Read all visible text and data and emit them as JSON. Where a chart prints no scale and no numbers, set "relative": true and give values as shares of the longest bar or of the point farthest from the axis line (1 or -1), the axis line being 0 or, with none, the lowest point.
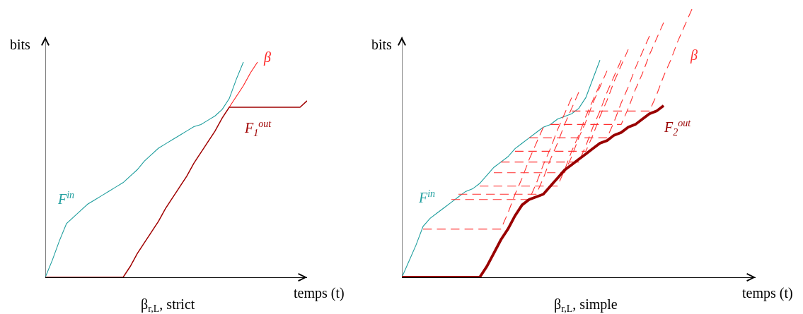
{
  "chart_data": [
    {
      "type": "line",
      "title": "β$_{r,L}$, strict",
      "xlabel": "temps (t)",
      "ylabel": "bits",
      "relative": true,
      "line_style": "solid",
      "categories": [
        null,
        null,
        null,
        null,
        null,
        null,
        null,
        null,
        null,
        null,
        null,
        null,
        null,
        null,
        null,
        null,
        null,
        null,
        null,
        null,
        null,
        null,
        null,
        null,
        null,
        null,
        null,
        null,
        null,
        null,
        null,
        null,
        null,
        null,
        null,
        null,
        null,
        null
      ],
      "series": [
        {
          "name": "F$^{in}$",
          "color": "#1f9e9e",
          "values": [
            0,
            0.08,
            0.17,
            0.25,
            0.28,
            0.31,
            0.34,
            0.36,
            0.38,
            0.4,
            0.42,
            0.44,
            0.47,
            0.5,
            0.54,
            0.57,
            0.6,
            0.62,
            0.64,
            0.66,
            0.68,
            0.7,
            0.71,
            0.73,
            0.75,
            0.78,
            0.83,
            0.92,
            1.0,
            null,
            null,
            null,
            null,
            null,
            null,
            null,
            null,
            null
          ]
        },
        {
          "name": "β",
          "color": "#ff2020",
          "values": [
            null,
            null,
            null,
            null,
            null,
            null,
            null,
            null,
            null,
            null,
            null,
            null,
            null,
            null,
            null,
            null,
            null,
            null,
            null,
            null,
            null,
            null,
            null,
            null,
            null,
            null,
            0.79,
            0.84,
            0.89,
            0.95,
            1.0,
            null,
            null,
            null,
            null,
            null,
            null,
            null
          ]
        },
        {
          "name": "F$_{1}$$^{out}$",
          "color": "#a00000",
          "values": [
            0,
            0,
            0,
            0,
            0,
            0,
            0,
            0,
            0,
            0,
            0,
            0,
            0.05,
            0.11,
            0.16,
            0.21,
            0.26,
            0.32,
            0.37,
            0.42,
            0.47,
            0.53,
            0.58,
            0.63,
            0.68,
            0.74,
            0.79,
            0.79,
            0.79,
            0.79,
            0.79,
            0.79,
            0.79,
            0.79,
            0.79,
            0.79,
            0.79,
            0.82
          ]
        }
      ]
    },
    {
      "type": "line",
      "title": "β$_{r,L}$, simple",
      "xlabel": "temps (t)",
      "ylabel": "bits",
      "relative": true,
      "line_style": "solid",
      "categories": [
        null,
        null,
        null,
        null,
        null,
        null,
        null,
        null,
        null,
        null,
        null,
        null,
        null,
        null,
        null,
        null,
        null,
        null,
        null,
        null,
        null,
        null,
        null,
        null,
        null,
        null,
        null,
        null,
        null,
        null,
        null,
        null,
        null,
        null,
        null,
        null,
        null,
        null,
        null,
        null,
        null,
        null,
        null,
        null,
        null,
        null,
        null,
        null,
        null,
        null,
        null
      ],
      "series": [
        {
          "name": "F$^{in}$",
          "color": "#1f9e9e",
          "values": [
            0,
            0.06,
            0.12,
            0.19,
            0.22,
            0.24,
            0.26,
            0.28,
            0.3,
            0.32,
            0.33,
            0.35,
            0.38,
            0.41,
            0.43,
            0.45,
            0.48,
            0.5,
            0.52,
            0.54,
            0.56,
            0.57,
            0.59,
            0.6,
            0.61,
            0.63,
            0.67,
            0.74,
            0.81,
            null,
            null,
            null,
            null,
            null,
            null,
            null,
            null,
            null,
            null,
            null,
            null,
            null,
            null,
            null,
            null,
            null,
            null,
            null,
            null,
            null,
            null
          ]
        },
        {
          "color": "#ff3030",
          "line_style": "dashed",
          "values": [
            null,
            null,
            null,
            0.18,
            0.18,
            0.18,
            0.18,
            0.18,
            0.18,
            0.18,
            0.18,
            0.18,
            0.18,
            0.18,
            0.18,
            0.24,
            0.31,
            0.37,
            0.44,
            0.5,
            0.56,
            null,
            null,
            null,
            null,
            null,
            null,
            null,
            null,
            null,
            null,
            null,
            null,
            null,
            null,
            null,
            null,
            null,
            null,
            null,
            null,
            null,
            null,
            null,
            null,
            null,
            null,
            null,
            null,
            null,
            null
          ]
        },
        {
          "color": "#ff3030",
          "line_style": "dashed",
          "values": [
            null,
            null,
            null,
            null,
            null,
            null,
            null,
            0.29,
            0.29,
            0.29,
            0.29,
            0.29,
            0.29,
            0.29,
            0.29,
            0.29,
            0.29,
            0.29,
            0.29,
            0.35,
            0.42,
            0.48,
            0.55,
            0.61,
            0.67,
            null,
            null,
            null,
            null,
            null,
            null,
            null,
            null,
            null,
            null,
            null,
            null,
            null,
            null,
            null,
            null,
            null,
            null,
            null,
            null,
            null,
            null,
            null,
            null,
            null,
            null
          ]
        },
        {
          "color": "#ff3030",
          "line_style": "dashed",
          "values": [
            null,
            null,
            null,
            null,
            null,
            null,
            null,
            null,
            0.31,
            0.31,
            0.31,
            0.31,
            0.31,
            0.31,
            0.31,
            0.31,
            0.31,
            0.31,
            0.31,
            0.31,
            0.37,
            0.44,
            0.5,
            0.57,
            0.63,
            0.69,
            null,
            null,
            null,
            null,
            null,
            null,
            null,
            null,
            null,
            null,
            null,
            null,
            null,
            null,
            null,
            null,
            null,
            null,
            null,
            null,
            null,
            null,
            null,
            null,
            null
          ]
        },
        {
          "color": "#ff3030",
          "line_style": "dashed",
          "values": [
            null,
            null,
            null,
            null,
            null,
            null,
            null,
            null,
            null,
            null,
            null,
            0.34,
            0.34,
            0.34,
            0.34,
            0.34,
            0.34,
            0.34,
            0.34,
            0.34,
            0.34,
            0.34,
            0.34,
            0.4,
            0.47,
            0.53,
            0.6,
            0.66,
            0.72,
            null,
            null,
            null,
            null,
            null,
            null,
            null,
            null,
            null,
            null,
            null,
            null,
            null,
            null,
            null,
            null,
            null,
            null,
            null,
            null,
            null,
            null
          ]
        },
        {
          "color": "#ff3030",
          "line_style": "dashed",
          "values": [
            null,
            null,
            null,
            null,
            null,
            null,
            null,
            null,
            null,
            null,
            null,
            null,
            null,
            0.39,
            0.39,
            0.39,
            0.39,
            0.39,
            0.39,
            0.39,
            0.39,
            0.39,
            0.39,
            0.39,
            0.45,
            0.52,
            0.58,
            0.65,
            0.71,
            0.77,
            null,
            null,
            null,
            null,
            null,
            null,
            null,
            null,
            null,
            null,
            null,
            null,
            null,
            null,
            null,
            null,
            null,
            null,
            null,
            null,
            null
          ]
        },
        {
          "color": "#ff3030",
          "line_style": "dashed",
          "values": [
            null,
            null,
            null,
            null,
            null,
            null,
            null,
            null,
            null,
            null,
            null,
            null,
            null,
            null,
            0.43,
            0.43,
            0.43,
            0.43,
            0.43,
            0.43,
            0.43,
            0.43,
            0.43,
            0.43,
            0.43,
            0.43,
            0.49,
            0.56,
            0.62,
            0.69,
            0.75,
            0.81,
            null,
            null,
            null,
            null,
            null,
            null,
            null,
            null,
            null,
            null,
            null,
            null,
            null,
            null,
            null,
            null,
            null,
            null,
            null
          ]
        },
        {
          "color": "#ff3030",
          "line_style": "dashed",
          "values": [
            null,
            null,
            null,
            null,
            null,
            null,
            null,
            null,
            null,
            null,
            null,
            null,
            null,
            null,
            null,
            null,
            0.47,
            0.47,
            0.47,
            0.47,
            0.47,
            0.47,
            0.47,
            0.47,
            0.47,
            0.47,
            0.47,
            0.53,
            0.6,
            0.66,
            0.73,
            0.79,
            0.85,
            null,
            null,
            null,
            null,
            null,
            null,
            null,
            null,
            null,
            null,
            null,
            null,
            null,
            null,
            null,
            null,
            null,
            null
          ]
        },
        {
          "color": "#ff3030",
          "line_style": "dashed",
          "values": [
            null,
            null,
            null,
            null,
            null,
            null,
            null,
            null,
            null,
            null,
            null,
            null,
            null,
            null,
            null,
            null,
            null,
            null,
            0.52,
            0.52,
            0.52,
            0.52,
            0.52,
            0.52,
            0.52,
            0.52,
            0.52,
            0.52,
            0.52,
            0.52,
            0.58,
            0.65,
            0.71,
            0.78,
            0.84,
            0.9,
            null,
            null,
            null,
            null,
            null,
            null,
            null,
            null,
            null,
            null,
            null,
            null,
            null,
            null,
            null
          ]
        },
        {
          "color": "#ff3030",
          "line_style": "dashed",
          "values": [
            null,
            null,
            null,
            null,
            null,
            null,
            null,
            null,
            null,
            null,
            null,
            null,
            null,
            null,
            null,
            null,
            null,
            null,
            null,
            null,
            null,
            0.57,
            0.57,
            0.57,
            0.57,
            0.57,
            0.57,
            0.57,
            0.57,
            0.57,
            0.57,
            0.57,
            0.63,
            0.7,
            0.76,
            0.83,
            0.89,
            0.95,
            null,
            null,
            null,
            null,
            null,
            null,
            null,
            null,
            null,
            null,
            null,
            null,
            null
          ]
        },
        {
          "name": "β",
          "color": "#ff3030",
          "line_style": "dashed",
          "values": [
            null,
            null,
            null,
            null,
            null,
            null,
            null,
            null,
            null,
            null,
            null,
            null,
            null,
            null,
            null,
            null,
            null,
            null,
            null,
            null,
            null,
            null,
            null,
            null,
            0.62,
            0.62,
            0.62,
            0.62,
            0.62,
            0.62,
            0.62,
            0.62,
            0.62,
            0.62,
            0.62,
            0.62,
            0.68,
            0.75,
            0.81,
            0.88,
            0.94,
            1.0,
            null,
            null,
            null,
            null,
            null,
            null,
            null,
            null,
            null
          ]
        },
        {
          "name": "F$_{2}$$^{out}$",
          "color": "#990000",
          "values": [
            0,
            0,
            0,
            0,
            0,
            0,
            0,
            0,
            0,
            0,
            0,
            0,
            0.04,
            0.09,
            0.14,
            0.18,
            0.23,
            0.27,
            0.29,
            0.3,
            0.31,
            0.34,
            0.37,
            0.4,
            0.42,
            0.44,
            0.46,
            0.48,
            0.5,
            0.51,
            0.53,
            0.54,
            0.56,
            0.57,
            0.59,
            0.61,
            0.62,
            0.64,
            null,
            null,
            null,
            null,
            null,
            null,
            null,
            null,
            null,
            null,
            null,
            null,
            null
          ]
        }
      ]
    }
  ]
}
